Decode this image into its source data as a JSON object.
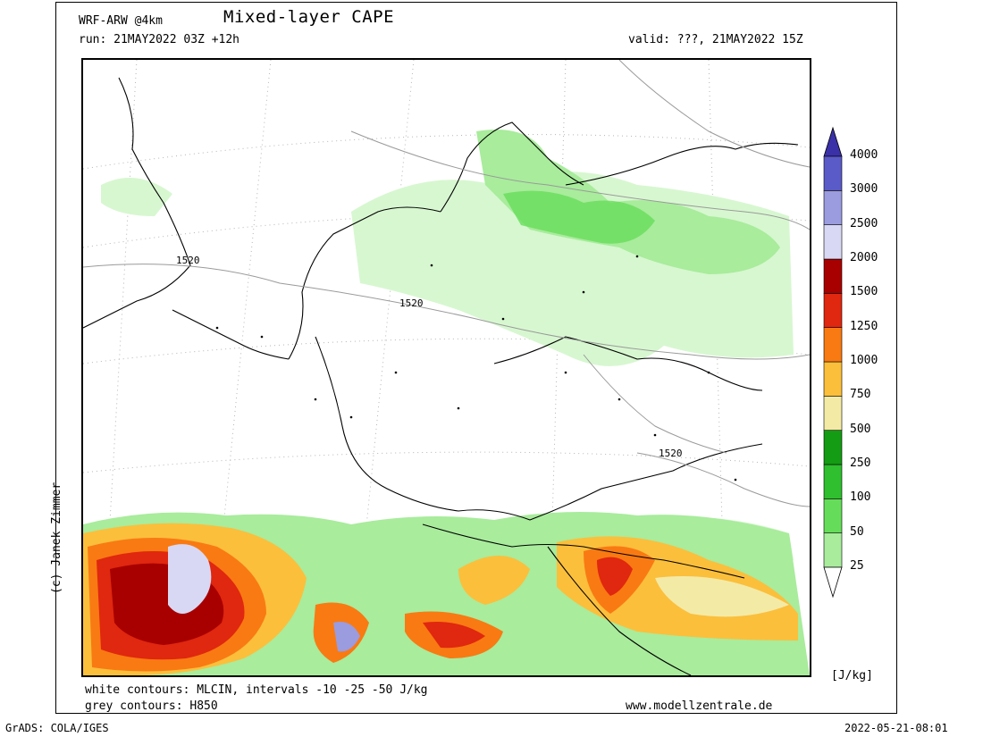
{
  "header": {
    "model": "WRF-ARW @4km",
    "title": "Mixed-layer CAPE",
    "run": "run: 21MAY2022 03Z +12h",
    "valid": "valid: ???, 21MAY2022 15Z"
  },
  "credit": "(c) Janek Zimmer",
  "legend": {
    "unit": "[J/kg]",
    "levels": [
      "25",
      "50",
      "100",
      "250",
      "500",
      "750",
      "1000",
      "1250",
      "1500",
      "2000",
      "2500",
      "3000",
      "4000"
    ],
    "colors": [
      "#d7f7d0",
      "#a8ec9c",
      "#66dd5a",
      "#2fbf2f",
      "#149c14",
      "#f3eaa6",
      "#fbbf3c",
      "#f97a12",
      "#e0270f",
      "#a80000",
      "#d8d8f4",
      "#9b9be0",
      "#5a5ac8",
      "#3a31a8"
    ]
  },
  "contour_labels": [
    "1520",
    "1520",
    "1520"
  ],
  "notes": {
    "white_contours": "white contours: MLCIN, intervals -10 -25 -50 J/kg",
    "grey_contours": "grey contours: H850",
    "website": "www.modellzentrale.de"
  },
  "footer": {
    "left": "GrADS: COLA/IGES",
    "right": "2022-05-21-08:01"
  }
}
